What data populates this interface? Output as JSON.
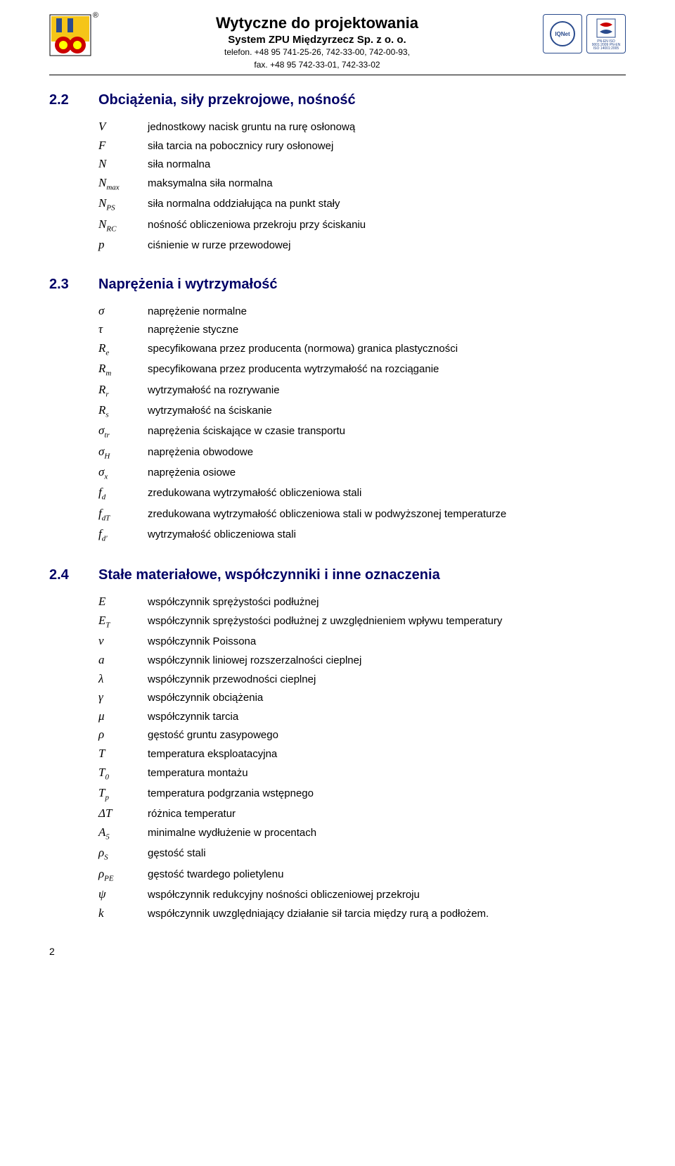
{
  "header": {
    "title": "Wytyczne do projektowania",
    "subtitle": "System ZPU Międzyrzecz Sp. z o. o.",
    "phone_label": "telefon.",
    "phones": "+48 95 741-25-26, 742-33-00, 742-00-93,",
    "fax_label": "fax.",
    "faxes": "+48 95 742-33-01, 742-33-02",
    "reg": "®",
    "badge1": "IQNet",
    "badge2": "PCBC",
    "badge2_sub": "PN-EN ISO 9001:2009\nPN-EN ISO 14001:2005"
  },
  "sections": [
    {
      "number": "2.2",
      "title": "Obciążenia, siły przekrojowe, nośność",
      "items": [
        {
          "sym": "V",
          "desc": "jednostkowy nacisk gruntu na rurę osłonową"
        },
        {
          "sym": "F",
          "desc": "siła tarcia na pobocznicy rury osłonowej"
        },
        {
          "sym": "N",
          "desc": "siła normalna"
        },
        {
          "sym": "N<sub>max</sub>",
          "desc": "maksymalna siła normalna"
        },
        {
          "sym": "N<sub>PS</sub>",
          "desc": "siła normalna oddziałująca na punkt stały"
        },
        {
          "sym": "N<sub>RC</sub>",
          "desc": "nośność obliczeniowa przekroju przy ściskaniu"
        },
        {
          "sym": "p",
          "desc": "ciśnienie w rurze przewodowej"
        }
      ]
    },
    {
      "number": "2.3",
      "title": "Naprężenia i wytrzymałość",
      "items": [
        {
          "sym": "σ",
          "desc": "naprężenie normalne"
        },
        {
          "sym": "τ",
          "desc": "naprężenie styczne"
        },
        {
          "sym": "R<sub>e</sub>",
          "desc": "specyfikowana przez producenta (normowa) granica plastyczności"
        },
        {
          "sym": "R<sub>m</sub>",
          "desc": "specyfikowana przez producenta wytrzymałość na rozciąganie"
        },
        {
          "sym": "R<sub>r</sub>",
          "desc": "wytrzymałość na rozrywanie"
        },
        {
          "sym": "R<sub>s</sub>",
          "desc": "wytrzymałość na ściskanie"
        },
        {
          "sym": "σ<sub>tr</sub>",
          "desc": "naprężenia ściskające w czasie transportu"
        },
        {
          "sym": "σ<sub>H</sub>",
          "desc": "naprężenia obwodowe"
        },
        {
          "sym": "σ<sub>x</sub>",
          "desc": "naprężenia osiowe"
        },
        {
          "sym": "f<sub>d</sub>",
          "desc": "zredukowana wytrzymałość obliczeniowa stali"
        },
        {
          "sym": "f<sub>dT</sub>",
          "desc": "zredukowana wytrzymałość obliczeniowa stali w podwyższonej temperaturze"
        },
        {
          "sym": "f<sub>d'</sub>",
          "desc": "wytrzymałość obliczeniowa stali"
        }
      ]
    },
    {
      "number": "2.4",
      "title": "Stałe materiałowe, współczynniki i inne oznaczenia",
      "items": [
        {
          "sym": "E",
          "desc": "współczynnik sprężystości podłużnej"
        },
        {
          "sym": "E<sub>T</sub>",
          "desc": "współczynnik sprężystości podłużnej z uwzględnieniem wpływu temperatury"
        },
        {
          "sym": "v",
          "desc": "współczynnik Poissona"
        },
        {
          "sym": "a",
          "desc": "współczynnik liniowej rozszerzalności cieplnej"
        },
        {
          "sym": "λ",
          "desc": "współczynnik przewodności cieplnej"
        },
        {
          "sym": "γ",
          "desc": "współczynnik obciążenia"
        },
        {
          "sym": "μ",
          "desc": "współczynnik tarcia"
        },
        {
          "sym": "ρ",
          "desc": "gęstość gruntu zasypowego"
        },
        {
          "sym": "T",
          "desc": "temperatura eksploatacyjna"
        },
        {
          "sym": "T<sub>0</sub>",
          "desc": "temperatura montażu"
        },
        {
          "sym": "T<sub>p</sub>",
          "desc": "temperatura podgrzania wstępnego"
        },
        {
          "sym": "ΔT",
          "desc": "różnica temperatur"
        },
        {
          "sym": "A<sub>5</sub>",
          "desc": "minimalne wydłużenie w procentach"
        },
        {
          "sym": "ρ<sub>S</sub>",
          "desc": "gęstość stali"
        },
        {
          "sym": "ρ<sub>PE</sub>",
          "desc": "gęstość twardego polietylenu"
        },
        {
          "sym": "ψ",
          "desc": "współczynnik redukcyjny nośności obliczeniowej przekroju"
        },
        {
          "sym": "k",
          "desc": "współczynnik uwzględniający działanie sił tarcia między rurą a podłożem."
        }
      ]
    }
  ],
  "page_number": "2"
}
